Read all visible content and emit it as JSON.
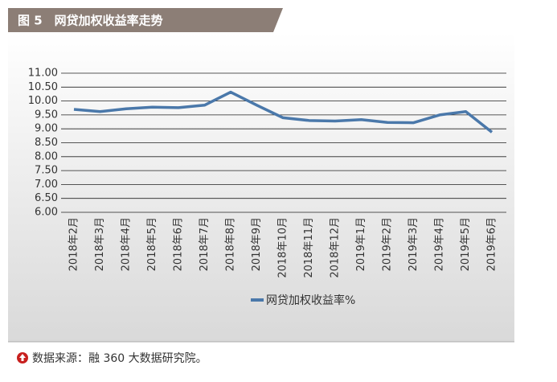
{
  "chart_data": {
    "type": "line",
    "title": "图 5　网贷加权收益率走势",
    "categories": [
      "2018年2月",
      "2018年3月",
      "2018年4月",
      "2018年5月",
      "2018年6月",
      "2018年7月",
      "2018年8月",
      "2018年9月",
      "2018年10月",
      "2018年11月",
      "2018年12月",
      "2019年1月",
      "2019年2月",
      "2019年3月",
      "2019年4月",
      "2019年5月",
      "2019年6月"
    ],
    "series": [
      {
        "name": "网贷加权收益率%",
        "color": "#4a78aa",
        "values": [
          9.7,
          9.62,
          9.72,
          9.78,
          9.76,
          9.85,
          10.32,
          9.85,
          9.4,
          9.3,
          9.28,
          9.33,
          9.23,
          9.22,
          9.5,
          9.62,
          8.88
        ]
      }
    ],
    "ylim": [
      6,
      11
    ],
    "yticks": [
      {
        "value": 6,
        "label": "6.00"
      },
      {
        "value": 6.5,
        "label": "6.50"
      },
      {
        "value": 7,
        "label": "7.00"
      },
      {
        "value": 7.5,
        "label": "7.50"
      },
      {
        "value": 8,
        "label": "8.00"
      },
      {
        "value": 8.5,
        "label": "8.50"
      },
      {
        "value": 9,
        "label": "9.00"
      },
      {
        "value": 9.5,
        "label": "9.50"
      },
      {
        "value": 10,
        "label": "10.00"
      },
      {
        "value": 10.5,
        "label": "10.50"
      },
      {
        "value": 11,
        "label": "11.00"
      }
    ],
    "grid": true,
    "source": "数据来源：融 360 大数据研究院。"
  }
}
